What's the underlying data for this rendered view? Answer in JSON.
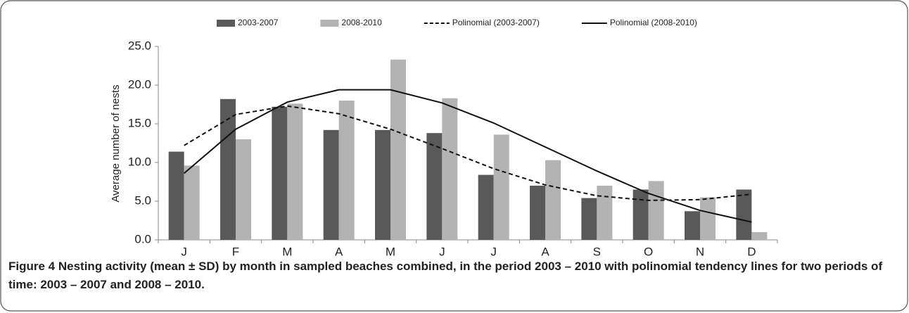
{
  "chart_data": {
    "type": "bar",
    "y_label": "Average number of nests",
    "categories": [
      "J",
      "F",
      "M",
      "A",
      "M",
      "J",
      "J",
      "A",
      "S",
      "O",
      "N",
      "D"
    ],
    "series": [
      {
        "name": "2003-2007",
        "type": "bar",
        "color": "#595959",
        "values": [
          11.4,
          18.2,
          17.2,
          14.2,
          14.2,
          13.8,
          8.4,
          7.0,
          5.4,
          6.5,
          3.7,
          6.5
        ]
      },
      {
        "name": "2008-2010",
        "type": "bar",
        "color": "#b3b3b3",
        "values": [
          9.6,
          13.0,
          17.6,
          18.0,
          23.3,
          18.3,
          13.6,
          10.3,
          7.0,
          7.6,
          5.5,
          1.0
        ]
      },
      {
        "name": "Polinomial (2003-2007)",
        "type": "line",
        "dashed": true,
        "color": "#111111",
        "values": [
          12.2,
          16.2,
          17.3,
          16.3,
          14.3,
          11.8,
          9.2,
          7.1,
          5.7,
          5.1,
          5.2,
          5.9
        ]
      },
      {
        "name": "Polinomial (2008-2010)",
        "type": "line",
        "dashed": false,
        "color": "#111111",
        "values": [
          8.6,
          14.3,
          17.8,
          19.4,
          19.4,
          17.7,
          15.1,
          12.0,
          8.9,
          6.0,
          3.8,
          2.3
        ]
      }
    ],
    "ylim": [
      0,
      25
    ],
    "yticks": [
      {
        "value": 0,
        "label": "0.0"
      },
      {
        "value": 5,
        "label": "5.0"
      },
      {
        "value": 10,
        "label": "10.0"
      },
      {
        "value": 15,
        "label": "15.0"
      },
      {
        "value": 20,
        "label": "20.0"
      },
      {
        "value": 25,
        "label": "25.0"
      }
    ],
    "legend": "top",
    "grid": false
  },
  "caption": {
    "label": "Figure 4",
    "text": "Nesting activity (mean ± SD) by month in sampled beaches combined, in the period 2003 – 2010 with polinomial tendency lines for two periods of time: 2003 – 2007 and 2008 – 2010."
  }
}
